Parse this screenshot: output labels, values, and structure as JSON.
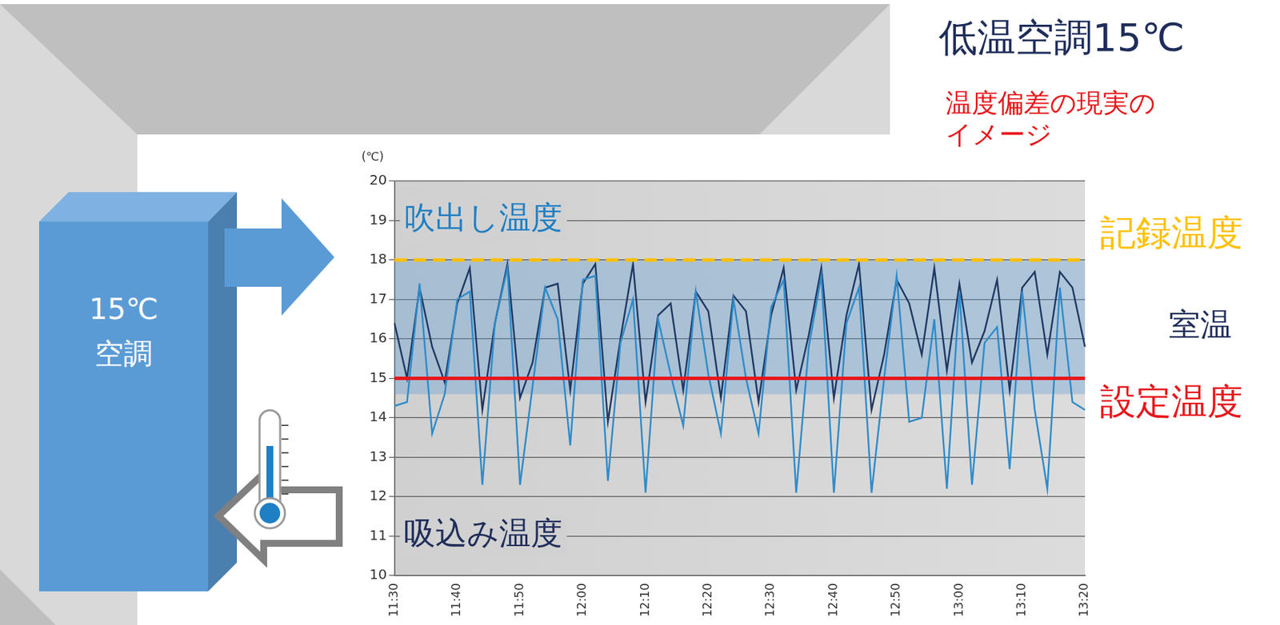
{
  "diagram": {
    "title": "低温空調15℃",
    "note": "温度偏差の現実のイメージ",
    "unit_label": [
      "15℃",
      "空調"
    ]
  },
  "chart_data": {
    "type": "line",
    "y_label": "(℃)",
    "categories": [
      "11:30",
      null,
      null,
      null,
      null,
      "11:40",
      null,
      null,
      null,
      null,
      "11:50",
      null,
      null,
      null,
      null,
      "12:00",
      null,
      null,
      null,
      null,
      "12:10",
      null,
      null,
      null,
      null,
      "12:20",
      null,
      null,
      null,
      null,
      "12:30",
      null,
      null,
      null,
      null,
      "12:40",
      null,
      null,
      null,
      null,
      "12:50",
      null,
      null,
      null,
      null,
      "13:00",
      null,
      null,
      null,
      null,
      "13:10",
      null,
      null,
      null,
      null,
      "13:20"
    ],
    "series": [
      {
        "name": "吹出し温度",
        "color": "#2e8bc9",
        "values": [
          14.3,
          14.4,
          17.4,
          13.6,
          14.6,
          17.0,
          17.2,
          12.3,
          16.4,
          17.8,
          12.3,
          14.8,
          17.3,
          16.5,
          13.3,
          17.5,
          17.6,
          12.4,
          15.9,
          17.0,
          12.1,
          16.5,
          15.1,
          13.8,
          17.2,
          15.1,
          13.6,
          17.0,
          15.0,
          13.6,
          16.8,
          17.5,
          12.1,
          15.8,
          17.6,
          12.1,
          16.4,
          17.3,
          12.1,
          15.0,
          17.6,
          13.9,
          14.0,
          16.5,
          12.2,
          17.2,
          12.3,
          15.9,
          16.3,
          12.7,
          17.2,
          14.2,
          12.2,
          17.3,
          14.4,
          14.2
        ]
      },
      {
        "name": "吸込み温度",
        "color": "#1f3864",
        "values": [
          16.4,
          15.0,
          17.3,
          15.8,
          14.9,
          16.9,
          17.8,
          14.2,
          16.4,
          17.9,
          14.5,
          15.4,
          17.3,
          17.4,
          14.7,
          17.4,
          17.9,
          13.9,
          16.0,
          17.9,
          14.4,
          16.6,
          16.9,
          14.7,
          17.2,
          16.7,
          14.5,
          17.1,
          16.7,
          14.4,
          16.6,
          17.8,
          14.7,
          16.1,
          17.8,
          14.5,
          16.6,
          17.9,
          14.2,
          15.6,
          17.5,
          16.9,
          15.6,
          17.8,
          15.2,
          17.4,
          15.4,
          16.2,
          17.5,
          14.7,
          17.3,
          17.7,
          15.6,
          17.7,
          17.3,
          15.8
        ]
      }
    ],
    "reference_lines": [
      {
        "name": "記録温度",
        "value": 18,
        "color": "#ffc000",
        "line_style": "dashed"
      },
      {
        "name": "設定温度",
        "value": 15,
        "color": "#e8161b",
        "line_style": "solid"
      }
    ],
    "bands": [
      {
        "name": "室温",
        "from": 14.6,
        "to": 18,
        "color": "#5b9bd5"
      }
    ],
    "ylim": [
      10,
      20
    ],
    "yticks": [
      10,
      11,
      12,
      13,
      14,
      15,
      16,
      17,
      18,
      19,
      20
    ],
    "grid": true
  }
}
